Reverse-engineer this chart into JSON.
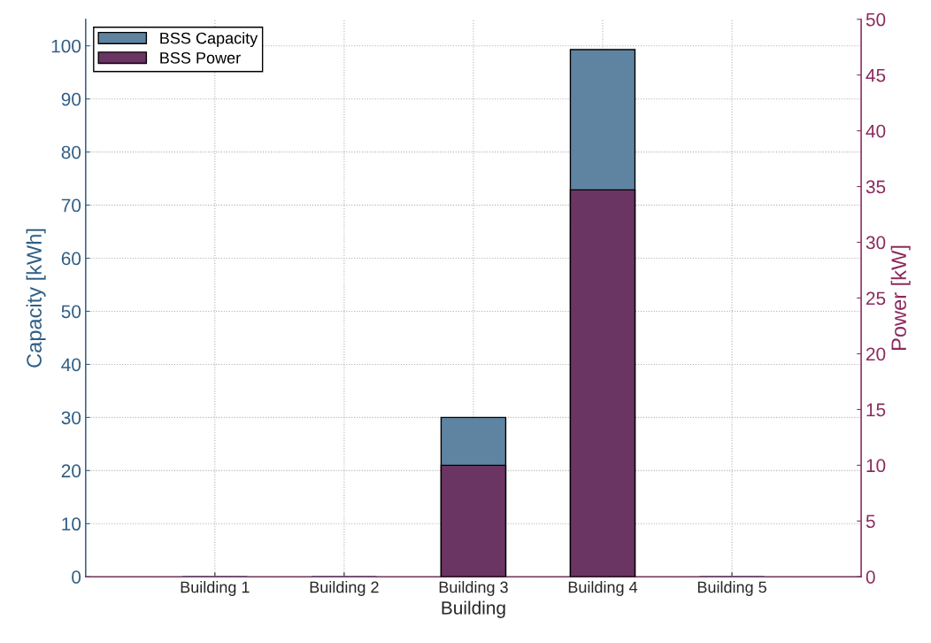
{
  "chart_data": {
    "type": "bar",
    "xlabel": "Building",
    "ylabel": "Capacity [kWh]",
    "y2label": "Power [kW]",
    "categories": [
      "Building 1",
      "Building 2",
      "Building 3",
      "Building 4",
      "Building 5"
    ],
    "series": [
      {
        "name": "BSS Capacity",
        "color": "#5f84a2",
        "values": [
          0,
          0,
          30,
          99.3,
          0
        ]
      },
      {
        "name": "BSS Power",
        "color": "#6a3563",
        "values": [
          0,
          0,
          10,
          34.7,
          0
        ],
        "axis": "y2"
      }
    ],
    "ylim": [
      0,
      105
    ],
    "yticks": [
      0,
      10,
      20,
      30,
      40,
      50,
      60,
      70,
      80,
      90,
      100
    ],
    "y2lim": [
      0,
      50
    ],
    "y2ticks": [
      0,
      5,
      10,
      15,
      20,
      25,
      30,
      35,
      40,
      45,
      50
    ],
    "grid": true,
    "legend": "top left"
  }
}
